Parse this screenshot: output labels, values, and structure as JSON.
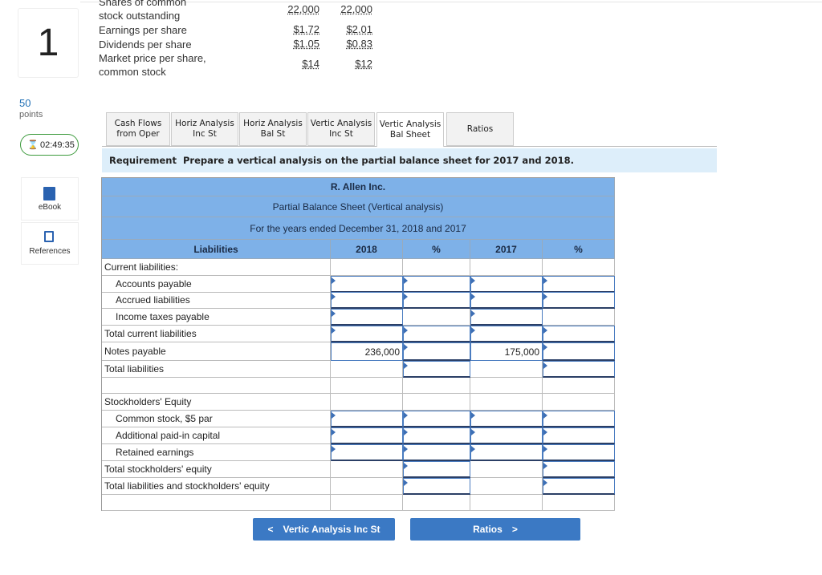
{
  "sidebar": {
    "question_number": "1",
    "points_value": "50",
    "points_label": "points",
    "timer": "02:49:35",
    "ebook": "eBook",
    "references": "References"
  },
  "given": {
    "rows": [
      {
        "label": "Shares of common stock outstanding",
        "values": [
          "22,000",
          "22,000"
        ]
      },
      {
        "label": "Earnings per share",
        "values": [
          "$1.72",
          "$2.01"
        ]
      },
      {
        "label": "Dividends per share",
        "values": [
          "$1.05",
          "$0.83"
        ]
      },
      {
        "label": "Market price per share, common stock",
        "values": [
          "$14",
          "$12"
        ]
      }
    ]
  },
  "tabs": [
    "Cash Flows from Oper",
    "Horiz Analysis Inc St",
    "Horiz Analysis Bal St",
    "Vertic Analysis Inc St",
    "Vertic Analysis Bal Sheet",
    "Ratios"
  ],
  "active_tab": 4,
  "requirement": {
    "label": "Requirement",
    "text": "Prepare a vertical analysis on the partial balance sheet for 2017 and 2018."
  },
  "table": {
    "title": "R. Allen Inc.",
    "subtitle": "Partial Balance Sheet (Vertical analysis)",
    "period": "For the years ended December 31, 2018 and 2017",
    "headers": [
      "Liabilities",
      "2018",
      "%",
      "2017",
      "%"
    ],
    "rows": [
      {
        "label": "Current liabilities:",
        "indent": false
      },
      {
        "label": "Accounts payable",
        "indent": true
      },
      {
        "label": "Accrued liabilities",
        "indent": true
      },
      {
        "label": "Income taxes payable",
        "indent": true
      },
      {
        "label": "Total current liabilities",
        "indent": false
      },
      {
        "label": "Notes payable",
        "indent": false,
        "amount_2018": "236,000",
        "amount_2017": "175,000"
      },
      {
        "label": "Total liabilities",
        "indent": false
      },
      {
        "label": "Stockholders' Equity",
        "indent": false
      },
      {
        "label": "Common stock, $5 par",
        "indent": true
      },
      {
        "label": "Additional paid-in capital",
        "indent": true
      },
      {
        "label": "Retained earnings",
        "indent": true
      },
      {
        "label": "Total stockholders' equity",
        "indent": false
      },
      {
        "label": "Total liabilities and stockholders' equity",
        "indent": false
      }
    ]
  },
  "buttons": {
    "prev": "Vertic Analysis Inc St",
    "next": "Ratios"
  }
}
